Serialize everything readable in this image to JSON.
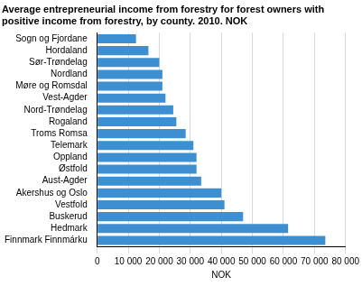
{
  "chart_data": {
    "type": "bar",
    "orientation": "horizontal",
    "title": [
      "Average entrepreneurial income from forestry for forest owners with",
      "positive income from forestry, by county. 2010. NOK"
    ],
    "x_label": "NOK",
    "categories": [
      "Sogn og Fjordane",
      "Hordaland",
      "Sør-Trøndelag",
      "Nordland",
      "Møre og Romsdal",
      "Vest-Agder",
      "Nord-Trøndelag",
      "Rogaland",
      "Troms Romsa",
      "Telemark",
      "Oppland",
      "Østfold",
      "Aust-Agder",
      "Akershus og Oslo",
      "Vestfold",
      "Buskerud",
      "Hedmark",
      "Finnmark Finnmárku"
    ],
    "values": [
      12500,
      16500,
      20000,
      21000,
      21000,
      22000,
      24500,
      25500,
      28500,
      31000,
      32000,
      32000,
      33500,
      40000,
      41000,
      47000,
      61500,
      73500
    ],
    "color": "#3d8fd1",
    "xlim": [
      0,
      80000
    ],
    "xticks": [
      0,
      {
        "value": 10000,
        "label": "10 000"
      },
      {
        "value": 20000,
        "label": "20 000"
      },
      {
        "value": 30000,
        "label": "30 000"
      },
      {
        "value": 40000,
        "label": "40 000"
      },
      {
        "value": 50000,
        "label": "50 000"
      },
      {
        "value": 60000,
        "label": "60 000"
      },
      {
        "value": 70000,
        "label": "70 000"
      },
      {
        "value": 80000,
        "label": "80 000"
      }
    ],
    "grid": true
  }
}
